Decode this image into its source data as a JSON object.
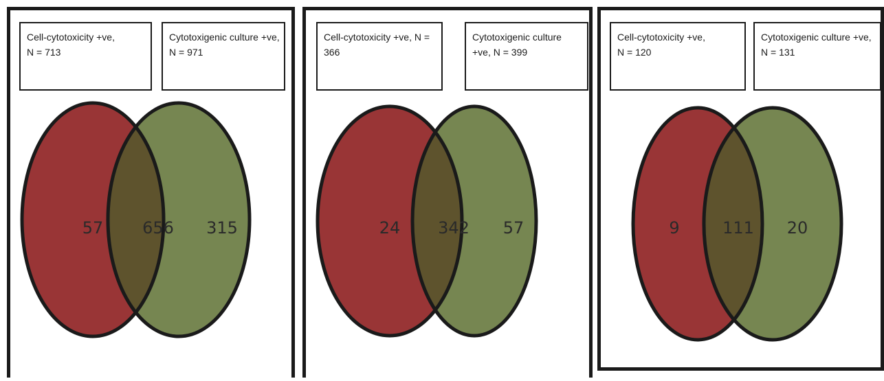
{
  "panels": [
    {
      "set_a": {
        "label": "Cell-cytotoxicity +ve,\nN = 713"
      },
      "set_b": {
        "label": "Cytotoxigenic culture +ve,\nN = 971"
      },
      "counts": {
        "a_only": "57",
        "both": "656",
        "b_only": "315"
      }
    },
    {
      "set_a": {
        "label": "Cell-cytotoxicity +ve, N =\n366"
      },
      "set_b": {
        "label": "Cytotoxigenic culture\n+ve, N = 399"
      },
      "counts": {
        "a_only": "24",
        "both": "342",
        "b_only": "57"
      }
    },
    {
      "set_a": {
        "label": "Cell-cytotoxicity +ve,\nN = 120"
      },
      "set_b": {
        "label": "Cytotoxigenic culture +ve,\nN = 131"
      },
      "counts": {
        "a_only": "9",
        "both": "111",
        "b_only": "20"
      }
    }
  ],
  "colors": {
    "set_a_fill": "#993536",
    "set_b_fill": "#768651",
    "overlap_fill": "#5e532d",
    "outline": "#1a1a1a"
  }
}
